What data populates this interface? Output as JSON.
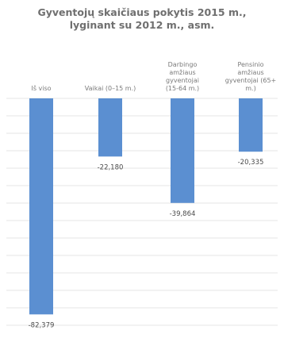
{
  "chart_data": {
    "type": "bar",
    "title": [
      "Gyventojų skaičiaus pokytis 2015 m.,",
      "lyginant su 2012 m., asm."
    ],
    "categories": [
      [
        "Iš viso"
      ],
      [
        "Vaikai (0–15 m.)"
      ],
      [
        "Darbingo",
        "amžiaus",
        "gyventojai",
        "(15-64 m.)"
      ],
      [
        "Pensinio",
        "amžiaus",
        "gyventojai (65+",
        "m.)"
      ]
    ],
    "values": [
      -82379,
      -22180,
      -39864,
      -20335
    ],
    "value_labels": [
      "-82,379",
      "-22,180",
      "-39,864",
      "-20,335"
    ],
    "ylim": [
      -85000,
      0
    ],
    "grid": true,
    "bar_color": "#5b8fd1",
    "xlabel": "",
    "ylabel": ""
  }
}
